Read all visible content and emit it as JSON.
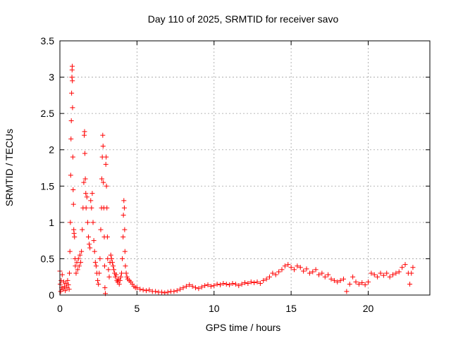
{
  "chart_data": {
    "type": "scatter",
    "title": "Day 110 of 2025, SRMTID for receiver savo",
    "xlabel": "GPS time / hours",
    "ylabel": "SRMTID / TECUs",
    "xlim": [
      0,
      24
    ],
    "ylim": [
      0,
      3.5
    ],
    "xticks": [
      0,
      5,
      10,
      15,
      20
    ],
    "xtick_labels": [
      "0",
      "5",
      "10",
      "15",
      "20"
    ],
    "yticks": [
      0,
      0.5,
      1,
      1.5,
      2,
      2.5,
      3,
      3.5
    ],
    "ytick_labels": [
      "0",
      "0.5",
      "1",
      "1.5",
      "2",
      "2.5",
      "3",
      "3.5"
    ],
    "grid": true,
    "marker": "+",
    "color": "#ff0000",
    "series": [
      {
        "name": "SRMTID",
        "points": [
          [
            0.0,
            0.33
          ],
          [
            0.02,
            0.15
          ],
          [
            0.05,
            0.05
          ],
          [
            0.08,
            0.2
          ],
          [
            0.12,
            0.1
          ],
          [
            0.15,
            0.28
          ],
          [
            0.2,
            0.08
          ],
          [
            0.25,
            0.18
          ],
          [
            0.3,
            0.12
          ],
          [
            0.35,
            0.06
          ],
          [
            0.4,
            0.16
          ],
          [
            0.45,
            0.1
          ],
          [
            0.5,
            0.2
          ],
          [
            0.55,
            0.14
          ],
          [
            0.6,
            0.08
          ],
          [
            0.62,
            0.3
          ],
          [
            0.65,
            0.6
          ],
          [
            0.68,
            1.0
          ],
          [
            0.7,
            1.65
          ],
          [
            0.72,
            2.15
          ],
          [
            0.74,
            2.4
          ],
          [
            0.76,
            2.78
          ],
          [
            0.78,
            3.0
          ],
          [
            0.79,
            3.1
          ],
          [
            0.8,
            3.15
          ],
          [
            0.81,
            2.95
          ],
          [
            0.82,
            2.58
          ],
          [
            0.84,
            1.9
          ],
          [
            0.86,
            1.45
          ],
          [
            0.88,
            1.25
          ],
          [
            0.9,
            0.9
          ],
          [
            0.92,
            0.85
          ],
          [
            0.95,
            0.8
          ],
          [
            0.98,
            0.5
          ],
          [
            1.0,
            0.4
          ],
          [
            1.05,
            0.3
          ],
          [
            1.1,
            0.45
          ],
          [
            1.15,
            0.35
          ],
          [
            1.2,
            0.5
          ],
          [
            1.25,
            0.4
          ],
          [
            1.3,
            0.55
          ],
          [
            1.35,
            0.45
          ],
          [
            1.4,
            0.6
          ],
          [
            1.45,
            0.9
          ],
          [
            1.5,
            1.2
          ],
          [
            1.55,
            1.55
          ],
          [
            1.58,
            2.2
          ],
          [
            1.6,
            2.25
          ],
          [
            1.62,
            1.95
          ],
          [
            1.65,
            1.6
          ],
          [
            1.68,
            1.4
          ],
          [
            1.7,
            1.2
          ],
          [
            1.75,
            1.35
          ],
          [
            1.8,
            1.0
          ],
          [
            1.85,
            0.8
          ],
          [
            1.9,
            0.7
          ],
          [
            1.95,
            0.65
          ],
          [
            2.0,
            1.3
          ],
          [
            2.05,
            1.2
          ],
          [
            2.1,
            1.4
          ],
          [
            2.15,
            1.0
          ],
          [
            2.2,
            0.75
          ],
          [
            2.25,
            0.6
          ],
          [
            2.3,
            0.45
          ],
          [
            2.35,
            0.4
          ],
          [
            2.4,
            0.3
          ],
          [
            2.45,
            0.2
          ],
          [
            2.5,
            0.15
          ],
          [
            2.55,
            0.3
          ],
          [
            2.6,
            0.5
          ],
          [
            2.65,
            0.9
          ],
          [
            2.7,
            1.2
          ],
          [
            2.72,
            1.6
          ],
          [
            2.75,
            1.9
          ],
          [
            2.78,
            2.2
          ],
          [
            2.8,
            2.05
          ],
          [
            2.82,
            1.55
          ],
          [
            2.85,
            1.2
          ],
          [
            2.88,
            0.8
          ],
          [
            2.9,
            0.4
          ],
          [
            2.92,
            0.1
          ],
          [
            2.95,
            0.02
          ],
          [
            2.98,
            1.8
          ],
          [
            3.0,
            1.9
          ],
          [
            3.02,
            1.5
          ],
          [
            3.05,
            1.2
          ],
          [
            3.08,
            0.8
          ],
          [
            3.1,
            0.5
          ],
          [
            3.15,
            0.35
          ],
          [
            3.2,
            0.25
          ],
          [
            3.25,
            0.45
          ],
          [
            3.3,
            0.55
          ],
          [
            3.35,
            0.5
          ],
          [
            3.4,
            0.45
          ],
          [
            3.45,
            0.4
          ],
          [
            3.5,
            0.35
          ],
          [
            3.55,
            0.3
          ],
          [
            3.6,
            0.25
          ],
          [
            3.65,
            0.28
          ],
          [
            3.7,
            0.2
          ],
          [
            3.75,
            0.18
          ],
          [
            3.8,
            0.22
          ],
          [
            3.85,
            0.15
          ],
          [
            3.9,
            0.2
          ],
          [
            3.95,
            0.25
          ],
          [
            4.0,
            0.3
          ],
          [
            4.05,
            0.5
          ],
          [
            4.1,
            0.8
          ],
          [
            4.12,
            1.1
          ],
          [
            4.15,
            1.3
          ],
          [
            4.18,
            1.2
          ],
          [
            4.2,
            0.9
          ],
          [
            4.22,
            0.6
          ],
          [
            4.25,
            0.4
          ],
          [
            4.3,
            0.3
          ],
          [
            4.35,
            0.25
          ],
          [
            4.4,
            0.22
          ],
          [
            4.5,
            0.2
          ],
          [
            4.6,
            0.18
          ],
          [
            4.7,
            0.15
          ],
          [
            4.8,
            0.12
          ],
          [
            4.9,
            0.1
          ],
          [
            5.0,
            0.1
          ],
          [
            5.2,
            0.08
          ],
          [
            5.4,
            0.07
          ],
          [
            5.6,
            0.06
          ],
          [
            5.8,
            0.07
          ],
          [
            6.0,
            0.05
          ],
          [
            6.2,
            0.05
          ],
          [
            6.4,
            0.04
          ],
          [
            6.6,
            0.04
          ],
          [
            6.8,
            0.03
          ],
          [
            7.0,
            0.04
          ],
          [
            7.2,
            0.05
          ],
          [
            7.4,
            0.05
          ],
          [
            7.6,
            0.06
          ],
          [
            7.8,
            0.08
          ],
          [
            8.0,
            0.1
          ],
          [
            8.2,
            0.12
          ],
          [
            8.4,
            0.14
          ],
          [
            8.6,
            0.12
          ],
          [
            8.8,
            0.1
          ],
          [
            9.0,
            0.09
          ],
          [
            9.2,
            0.11
          ],
          [
            9.4,
            0.13
          ],
          [
            9.6,
            0.14
          ],
          [
            9.8,
            0.12
          ],
          [
            10.0,
            0.13
          ],
          [
            10.2,
            0.15
          ],
          [
            10.4,
            0.14
          ],
          [
            10.6,
            0.16
          ],
          [
            10.8,
            0.15
          ],
          [
            11.0,
            0.14
          ],
          [
            11.2,
            0.16
          ],
          [
            11.4,
            0.15
          ],
          [
            11.6,
            0.13
          ],
          [
            11.8,
            0.15
          ],
          [
            12.0,
            0.17
          ],
          [
            12.2,
            0.16
          ],
          [
            12.4,
            0.18
          ],
          [
            12.6,
            0.17
          ],
          [
            12.8,
            0.18
          ],
          [
            13.0,
            0.16
          ],
          [
            13.2,
            0.2
          ],
          [
            13.4,
            0.22
          ],
          [
            13.6,
            0.25
          ],
          [
            13.8,
            0.3
          ],
          [
            14.0,
            0.28
          ],
          [
            14.2,
            0.32
          ],
          [
            14.4,
            0.35
          ],
          [
            14.6,
            0.4
          ],
          [
            14.8,
            0.42
          ],
          [
            15.0,
            0.38
          ],
          [
            15.2,
            0.35
          ],
          [
            15.4,
            0.4
          ],
          [
            15.6,
            0.38
          ],
          [
            15.8,
            0.33
          ],
          [
            16.0,
            0.36
          ],
          [
            16.2,
            0.3
          ],
          [
            16.4,
            0.32
          ],
          [
            16.6,
            0.35
          ],
          [
            16.8,
            0.28
          ],
          [
            17.0,
            0.3
          ],
          [
            17.2,
            0.25
          ],
          [
            17.4,
            0.28
          ],
          [
            17.6,
            0.22
          ],
          [
            17.8,
            0.2
          ],
          [
            18.0,
            0.18
          ],
          [
            18.2,
            0.2
          ],
          [
            18.4,
            0.22
          ],
          [
            18.6,
            0.05
          ],
          [
            18.8,
            0.15
          ],
          [
            19.0,
            0.25
          ],
          [
            19.2,
            0.18
          ],
          [
            19.4,
            0.15
          ],
          [
            19.6,
            0.17
          ],
          [
            19.8,
            0.14
          ],
          [
            20.0,
            0.18
          ],
          [
            20.2,
            0.3
          ],
          [
            20.4,
            0.28
          ],
          [
            20.6,
            0.25
          ],
          [
            20.8,
            0.3
          ],
          [
            21.0,
            0.27
          ],
          [
            21.2,
            0.3
          ],
          [
            21.4,
            0.25
          ],
          [
            21.6,
            0.28
          ],
          [
            21.8,
            0.3
          ],
          [
            22.0,
            0.32
          ],
          [
            22.2,
            0.38
          ],
          [
            22.4,
            0.42
          ],
          [
            22.6,
            0.3
          ],
          [
            22.7,
            0.15
          ],
          [
            22.8,
            0.3
          ],
          [
            22.9,
            0.38
          ]
        ]
      }
    ]
  }
}
